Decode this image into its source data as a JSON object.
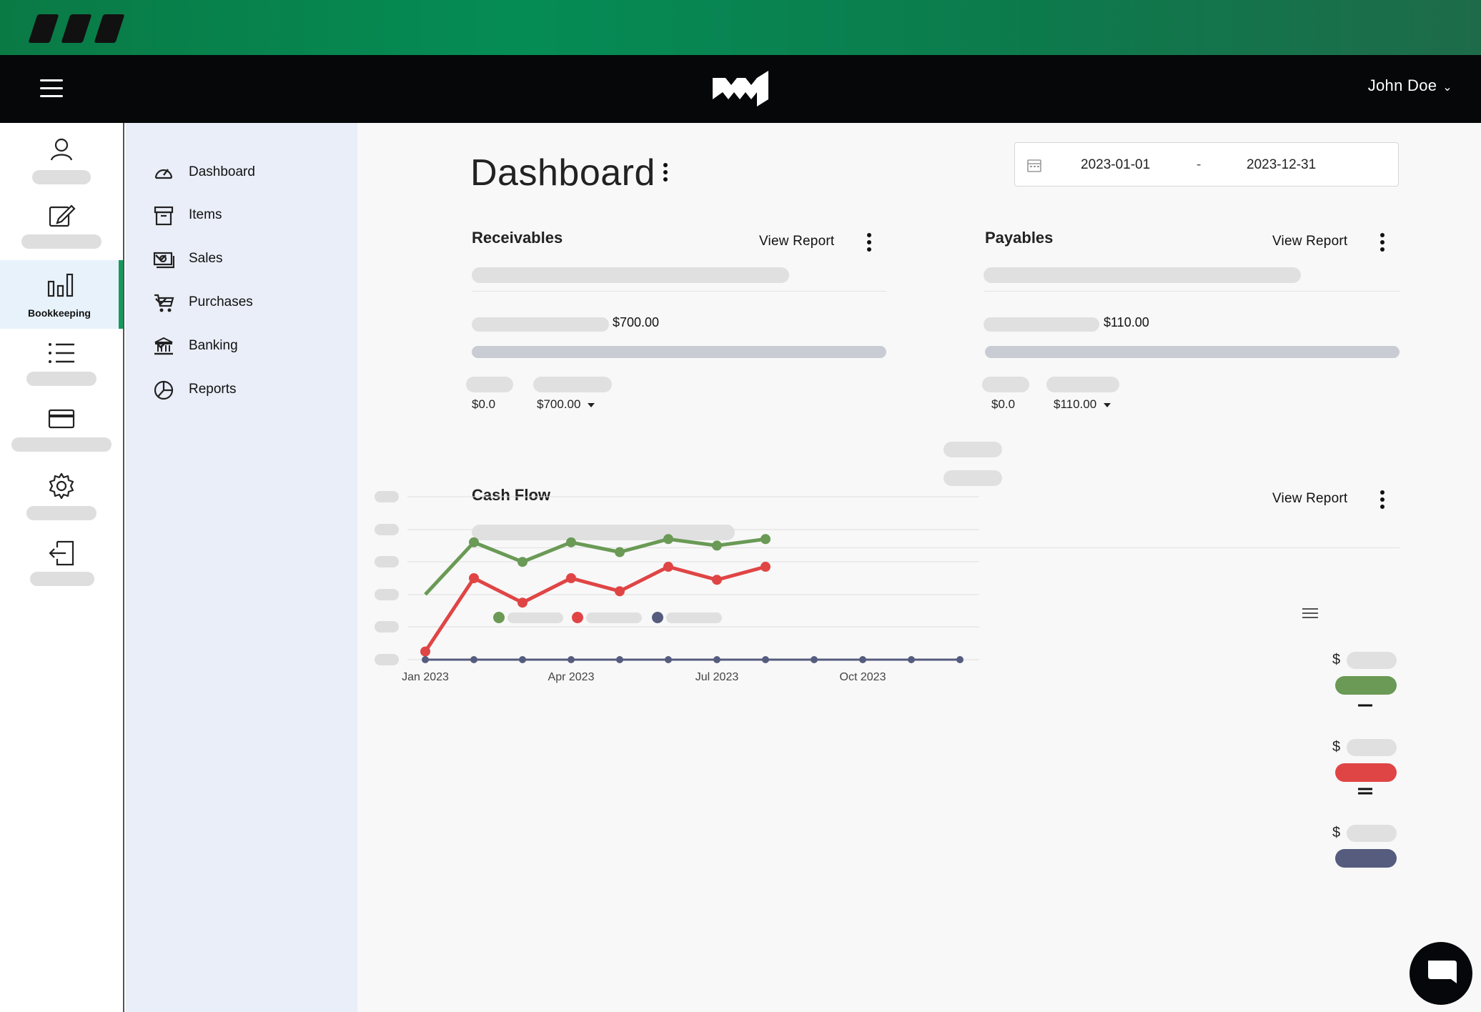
{
  "header": {
    "user_name": "John Doe",
    "user_chevron": "⌄",
    "logo_icon": "brand-logo-icon",
    "menu_icon": "hamburger-icon"
  },
  "iconbar": {
    "items": [
      {
        "icon": "user-icon"
      },
      {
        "icon": "edit-icon"
      },
      {
        "icon": "bar-chart-icon",
        "label": "Bookkeeping",
        "active": true
      },
      {
        "icon": "list-icon"
      },
      {
        "icon": "credit-card-icon"
      },
      {
        "icon": "gear-icon"
      },
      {
        "icon": "logout-icon"
      }
    ]
  },
  "nav": {
    "items": [
      {
        "label": "Dashboard",
        "icon": "speedometer-icon",
        "active": true
      },
      {
        "label": "Items",
        "icon": "archive-box-icon"
      },
      {
        "label": "Sales",
        "icon": "money-icon",
        "has_children": true
      },
      {
        "label": "Purchases",
        "icon": "shopping-cart-icon",
        "has_children": true
      },
      {
        "label": "Banking",
        "icon": "bank-icon",
        "has_children": true
      },
      {
        "label": "Reports",
        "icon": "pie-chart-icon"
      }
    ]
  },
  "page": {
    "title": "Dashboard",
    "date_from": "2023-01-01",
    "date_separator": "-",
    "date_to": "2023-12-31"
  },
  "receivables": {
    "title": "Receivables",
    "view_report": "View Report",
    "amount": "$700.00",
    "left_value": "$0.0",
    "right_value": "$700.00"
  },
  "payables": {
    "title": "Payables",
    "view_report": "View Report",
    "amount": "$110.00",
    "left_value": "$0.0",
    "right_value": "$110.00"
  },
  "cashflow": {
    "title": "Cash Flow",
    "view_report": "View Report",
    "summary_currency": "$",
    "colors": {
      "incoming": "#6a9a55",
      "outgoing": "#e04545",
      "profit": "#555c7e"
    }
  },
  "chart_data": {
    "type": "line",
    "x_tick_labels": [
      "Jan 2023",
      "Apr 2023",
      "Jul 2023",
      "Oct 2023"
    ],
    "x": [
      "Jan 2023",
      "Feb 2023",
      "Mar 2023",
      "Apr 2023",
      "May 2023",
      "Jun 2023",
      "Jul 2023",
      "Aug 2023",
      "Sep 2023",
      "Oct 2023",
      "Nov 2023",
      "Dec 2023"
    ],
    "series": [
      {
        "color": "#6a9a55",
        "values": [
          40,
          72,
          60,
          72,
          66,
          74,
          70,
          74,
          null,
          null,
          null,
          null
        ]
      },
      {
        "color": "#e04545",
        "values": [
          5,
          50,
          35,
          50,
          42,
          57,
          49,
          57,
          null,
          null,
          null,
          null
        ]
      },
      {
        "color": "#555c7e",
        "values": [
          0,
          0,
          0,
          0,
          0,
          0,
          0,
          0,
          0,
          0,
          0,
          0
        ]
      }
    ],
    "ylim": [
      0,
      100
    ],
    "grid": true,
    "legend": "top-left"
  }
}
